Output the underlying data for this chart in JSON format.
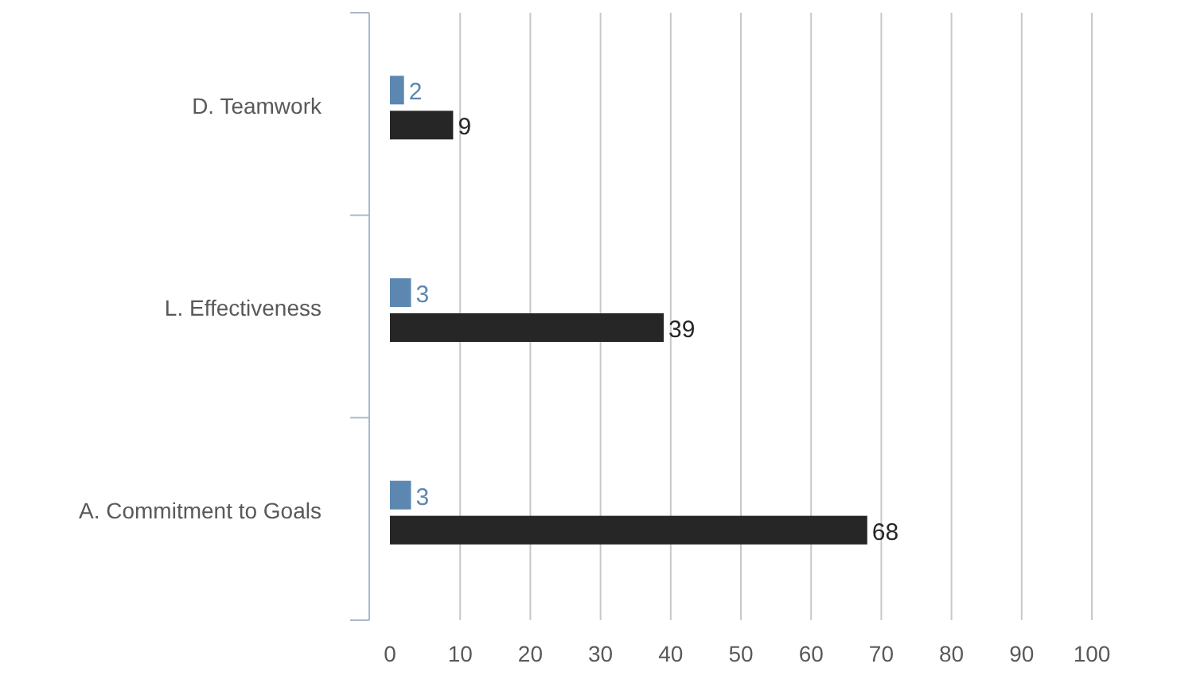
{
  "chart_data": {
    "type": "bar",
    "orientation": "horizontal",
    "categories": [
      "D. Teamwork",
      "L. Effectiveness",
      "A. Commitment to Goals"
    ],
    "series": [
      {
        "color": "#5b87b0",
        "values": [
          2,
          3,
          3
        ]
      },
      {
        "color": "#262626",
        "values": [
          9,
          39,
          68
        ]
      }
    ],
    "xlim": [
      0,
      100
    ],
    "xticks": [
      0,
      10,
      20,
      30,
      40,
      50,
      60,
      70,
      80,
      90,
      100
    ],
    "grid": "x",
    "data_labels": true
  }
}
